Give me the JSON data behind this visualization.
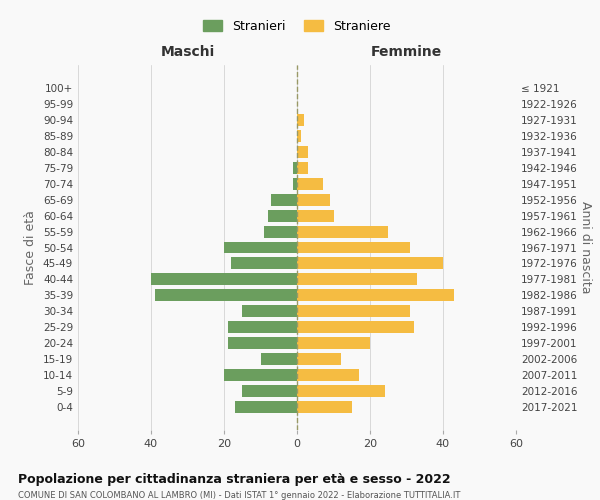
{
  "age_groups": [
    "0-4",
    "5-9",
    "10-14",
    "15-19",
    "20-24",
    "25-29",
    "30-34",
    "35-39",
    "40-44",
    "45-49",
    "50-54",
    "55-59",
    "60-64",
    "65-69",
    "70-74",
    "75-79",
    "80-84",
    "85-89",
    "90-94",
    "95-99",
    "100+"
  ],
  "birth_years": [
    "2017-2021",
    "2012-2016",
    "2007-2011",
    "2002-2006",
    "1997-2001",
    "1992-1996",
    "1987-1991",
    "1982-1986",
    "1977-1981",
    "1972-1976",
    "1967-1971",
    "1962-1966",
    "1957-1961",
    "1952-1956",
    "1947-1951",
    "1942-1946",
    "1937-1941",
    "1932-1936",
    "1927-1931",
    "1922-1926",
    "≤ 1921"
  ],
  "males": [
    17,
    15,
    20,
    10,
    19,
    19,
    15,
    39,
    40,
    18,
    20,
    9,
    8,
    7,
    1,
    1,
    0,
    0,
    0,
    0,
    0
  ],
  "females": [
    15,
    24,
    17,
    12,
    20,
    32,
    31,
    43,
    33,
    40,
    31,
    25,
    10,
    9,
    7,
    3,
    3,
    1,
    2,
    0,
    0
  ],
  "male_color": "#6b9e5e",
  "female_color": "#f5bc42",
  "background_color": "#f9f9f9",
  "grid_color": "#cccccc",
  "title": "Popolazione per cittadinanza straniera per età e sesso - 2022",
  "subtitle": "COMUNE DI SAN COLOMBANO AL LAMBRO (MI) - Dati ISTAT 1° gennaio 2022 - Elaborazione TUTTITALIA.IT",
  "male_label": "Stranieri",
  "female_label": "Straniere",
  "left_header": "Maschi",
  "right_header": "Femmine",
  "y_label_left": "Fasce di età",
  "y_label_right": "Anni di nascita",
  "xlim": 60
}
